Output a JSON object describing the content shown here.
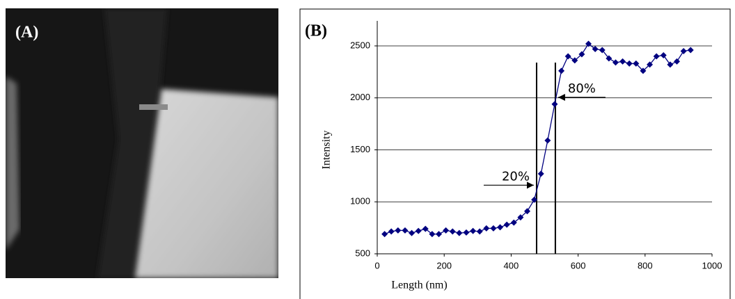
{
  "panel_a_label": "(A)",
  "chart_data": {
    "type": "line",
    "panel_label": "(B)",
    "x_label": "Length (nm)",
    "y_label": "Intensity",
    "x": [
      22,
      42,
      62,
      83,
      103,
      123,
      144,
      164,
      184,
      205,
      225,
      245,
      266,
      286,
      306,
      326,
      347,
      367,
      387,
      408,
      428,
      448,
      469,
      489,
      509,
      530,
      550,
      570,
      590,
      611,
      631,
      651,
      672,
      692,
      712,
      733,
      753,
      773,
      794,
      814,
      834,
      855,
      875,
      895,
      915,
      936
    ],
    "series": [
      {
        "name": "Intensity",
        "color": "#000080",
        "values": [
          690,
          715,
          725,
          725,
          700,
          720,
          740,
          690,
          690,
          725,
          715,
          700,
          705,
          720,
          715,
          745,
          745,
          755,
          780,
          800,
          850,
          910,
          1020,
          1270,
          1590,
          1940,
          2260,
          2400,
          2360,
          2420,
          2520,
          2470,
          2460,
          2380,
          2340,
          2350,
          2330,
          2330,
          2260,
          2320,
          2400,
          2410,
          2320,
          2350,
          2450,
          2460
        ]
      }
    ],
    "xlim": [
      0,
      1000
    ],
    "xticks": [
      0,
      200,
      400,
      600,
      800,
      1000
    ],
    "ylim": [
      500,
      2500
    ],
    "yticks": [
      500,
      1000,
      1500,
      2000,
      2500
    ],
    "grid": true,
    "annotations": [
      {
        "text": "20%",
        "x": 476,
        "y": 1160
      },
      {
        "text": "80%",
        "x": 532,
        "y": 2005
      }
    ]
  }
}
